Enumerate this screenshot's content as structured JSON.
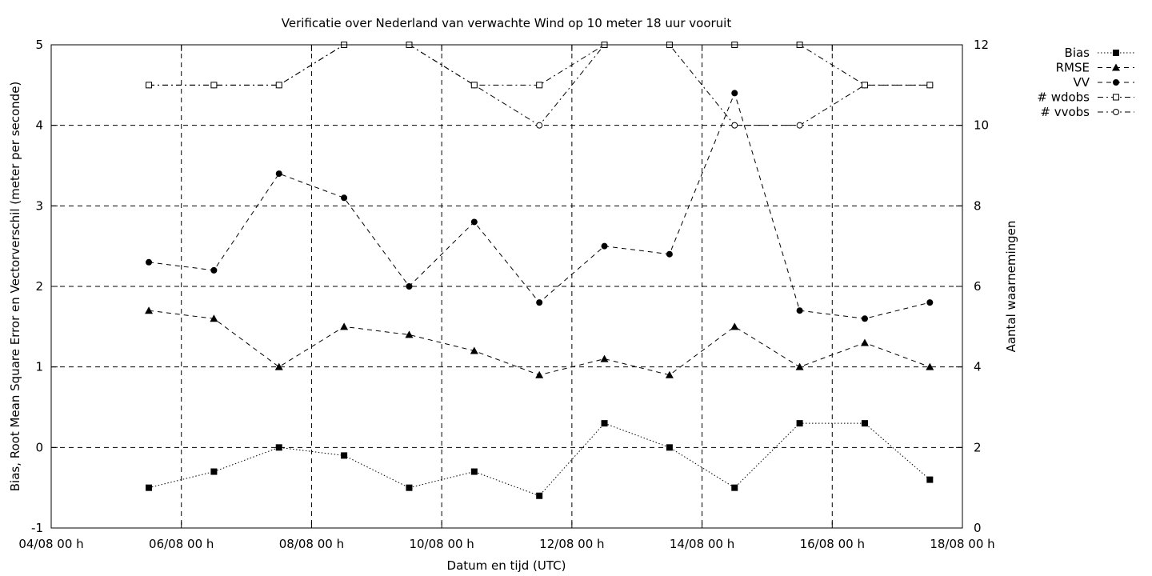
{
  "chart_data": {
    "type": "line",
    "title": "Verificatie over Nederland van verwachte Wind op 10 meter 18 uur vooruit",
    "xlabel": "Datum en tijd (UTC)",
    "ylabel": "Bias, Root Mean Square Error en Vectorverschil (meter per seconde)",
    "y2label": "Aantal waarnemingen",
    "ylim": [
      -1,
      5
    ],
    "y2lim": [
      0,
      12
    ],
    "xlim_days": [
      0,
      14
    ],
    "xticks": [
      "04/08 00 h",
      "06/08 00 h",
      "08/08 00 h",
      "10/08 00 h",
      "12/08 00 h",
      "14/08 00 h",
      "16/08 00 h",
      "18/08 00 h"
    ],
    "yticks": [
      "-1",
      "0",
      "1",
      "2",
      "3",
      "4",
      "5"
    ],
    "y2ticks": [
      "0",
      "2",
      "4",
      "6",
      "8",
      "10",
      "12"
    ],
    "grid": true,
    "legend_position": "outside-top-right",
    "x": [
      "05/08 12 h",
      "06/08 12 h",
      "07/08 12 h",
      "08/08 12 h",
      "09/08 12 h",
      "10/08 12 h",
      "11/08 12 h",
      "12/08 12 h",
      "13/08 12 h",
      "14/08 12 h",
      "15/08 12 h",
      "16/08 12 h",
      "17/08 12 h"
    ],
    "series": [
      {
        "name": "Bias",
        "axis": "left",
        "marker": "filled-square",
        "dash": "dotted",
        "values": [
          -0.5,
          -0.3,
          0.0,
          -0.1,
          -0.5,
          -0.3,
          -0.6,
          0.3,
          0.0,
          -0.5,
          0.3,
          0.3,
          -0.4
        ]
      },
      {
        "name": "RMSE",
        "axis": "left",
        "marker": "filled-triangle",
        "dash": "dashed",
        "values": [
          1.7,
          1.6,
          1.0,
          1.5,
          1.4,
          1.2,
          0.9,
          1.1,
          0.9,
          1.5,
          1.0,
          1.3,
          1.0
        ]
      },
      {
        "name": "VV",
        "axis": "left",
        "marker": "filled-circle",
        "dash": "dashed",
        "values": [
          2.3,
          2.2,
          3.4,
          3.1,
          2.0,
          2.8,
          1.8,
          2.5,
          2.4,
          4.4,
          1.7,
          1.6,
          1.8
        ]
      },
      {
        "name": "# wdobs",
        "axis": "right",
        "marker": "open-square",
        "dash": "dashdot",
        "values": [
          11,
          11,
          11,
          12,
          12,
          11,
          11,
          12,
          12,
          12,
          12,
          11,
          11
        ]
      },
      {
        "name": "# vvobs",
        "axis": "right",
        "marker": "open-circle",
        "dash": "dashdot",
        "values": [
          11,
          11,
          11,
          12,
          12,
          11,
          10,
          12,
          12,
          10,
          10,
          11,
          11
        ]
      }
    ]
  }
}
